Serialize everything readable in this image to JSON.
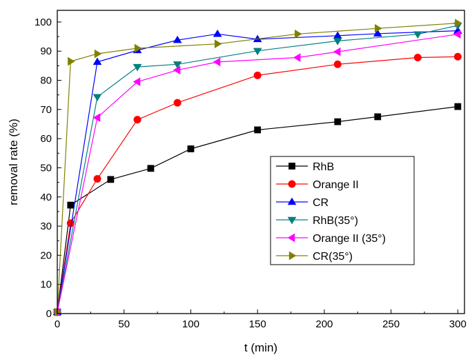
{
  "chart_data": {
    "type": "line",
    "xlabel": "t (min)",
    "ylabel": "removal rate (%)",
    "xlim": [
      0,
      305
    ],
    "ylim": [
      0,
      104
    ],
    "xticks": [
      0,
      50,
      100,
      150,
      200,
      250,
      300
    ],
    "yticks": [
      0,
      10,
      20,
      30,
      40,
      50,
      60,
      70,
      80,
      90,
      100
    ],
    "grid": false,
    "legend_position": "center-right",
    "series": [
      {
        "name": "RhB",
        "color": "#000000",
        "marker": "square",
        "x": [
          0,
          10,
          40,
          70,
          100,
          150,
          210,
          240,
          300
        ],
        "y": [
          0.5,
          37.2,
          46,
          49.8,
          56.5,
          63,
          65.8,
          67.5,
          71
        ]
      },
      {
        "name": "Orange II",
        "color": "#ff0000",
        "marker": "circle",
        "x": [
          0,
          10,
          30,
          60,
          90,
          150,
          210,
          270,
          300
        ],
        "y": [
          0.5,
          31,
          46.2,
          66.5,
          72.3,
          81.7,
          85.5,
          87.8,
          88.1
        ]
      },
      {
        "name": "CR",
        "color": "#0000ff",
        "marker": "triangle-up",
        "x": [
          0,
          30,
          60,
          90,
          120,
          150,
          210,
          240,
          300
        ],
        "y": [
          0.5,
          86.3,
          90.3,
          93.8,
          95.9,
          94.1,
          95.3,
          96,
          97
        ]
      },
      {
        "name": "RhB(35°)",
        "color": "#008080",
        "marker": "triangle-down",
        "x": [
          0,
          30,
          60,
          90,
          150,
          210,
          270,
          300
        ],
        "y": [
          0.5,
          74.3,
          84.6,
          85.5,
          90.1,
          93.5,
          95.8,
          98.8
        ]
      },
      {
        "name": "Orange II (35°)",
        "color": "#ff00ff",
        "marker": "triangle-left",
        "x": [
          0,
          30,
          60,
          90,
          120,
          180,
          210,
          300
        ],
        "y": [
          0.5,
          67.2,
          79.5,
          83.5,
          86.3,
          87.8,
          89.8,
          95.8
        ]
      },
      {
        "name": "CR(35°)",
        "color": "#808000",
        "marker": "triangle-right",
        "x": [
          0,
          10,
          30,
          60,
          120,
          180,
          240,
          300
        ],
        "y": [
          0.5,
          86.5,
          89.1,
          91,
          92.5,
          95.9,
          97.8,
          99.6
        ]
      }
    ]
  }
}
